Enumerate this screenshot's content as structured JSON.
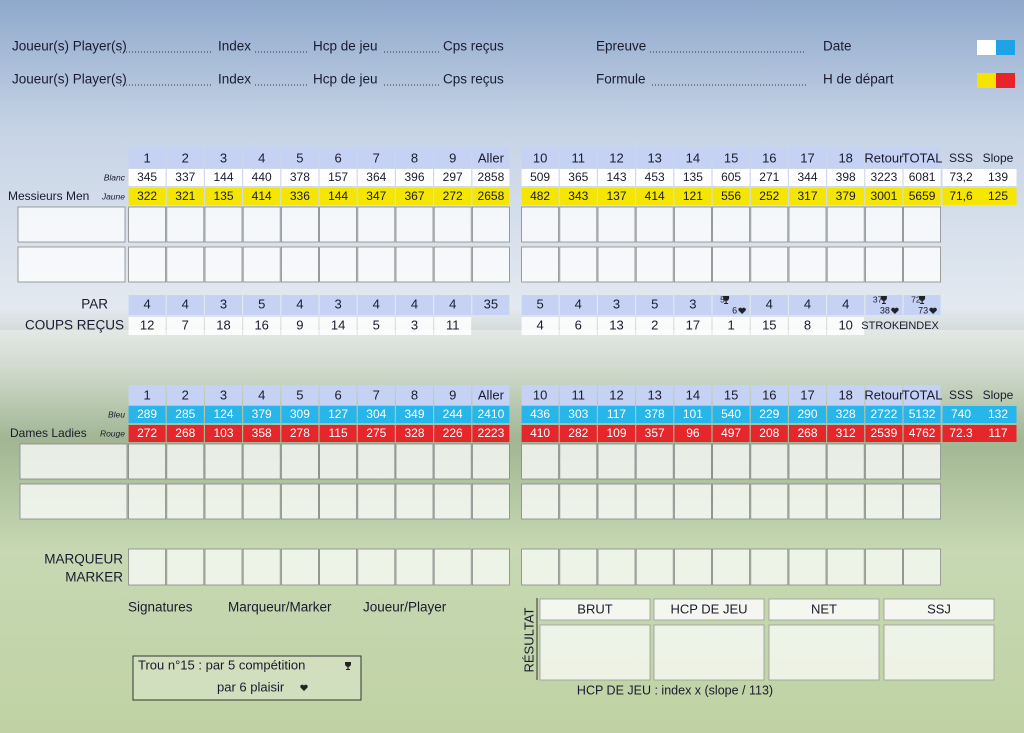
{
  "header": {
    "rows": [
      {
        "player": "Joueur(s) Player(s)",
        "index": "Index",
        "hcp": "Hcp de jeu",
        "strokes": "Cps reçus",
        "field1": "Epreuve",
        "field2": "Date"
      },
      {
        "player": "Joueur(s) Player(s)",
        "index": "Index",
        "hcp": "Hcp de jeu",
        "strokes": "Cps reçus",
        "field1": "Formule",
        "field2": "H de départ"
      }
    ]
  },
  "men": {
    "label": "Messieurs Men",
    "columns": [
      "1",
      "2",
      "3",
      "4",
      "5",
      "6",
      "7",
      "8",
      "9",
      "Aller",
      "10",
      "11",
      "12",
      "13",
      "14",
      "15",
      "16",
      "17",
      "18",
      "Retour",
      "TOTAL",
      "SSS",
      "Slope"
    ],
    "tees": [
      {
        "name": "Blanc",
        "values": [
          345,
          337,
          144,
          440,
          378,
          157,
          364,
          396,
          297,
          2858,
          509,
          365,
          143,
          453,
          135,
          605,
          271,
          344,
          398,
          3223,
          6081,
          "73,2",
          139
        ]
      },
      {
        "name": "Jaune",
        "values": [
          322,
          321,
          135,
          414,
          336,
          144,
          347,
          367,
          272,
          2658,
          482,
          343,
          137,
          414,
          121,
          556,
          252,
          317,
          379,
          3001,
          5659,
          "71,6",
          125
        ]
      }
    ]
  },
  "par": {
    "label": "PAR",
    "values": [
      4,
      4,
      3,
      5,
      4,
      3,
      4,
      4,
      4,
      35,
      5,
      4,
      3,
      5,
      3,
      {
        "competition": 5,
        "plaisir": 6
      },
      4,
      4,
      4,
      {
        "competition": 37,
        "plaisir": 38
      },
      {
        "competition": 72,
        "plaisir": 73
      }
    ]
  },
  "strokes_received": {
    "label": "COUPS REÇUS",
    "front": [
      12,
      7,
      18,
      16,
      9,
      14,
      5,
      3,
      11
    ],
    "back": [
      4,
      6,
      13,
      2,
      17,
      1,
      15,
      8,
      10
    ],
    "stroke": "STROKE",
    "index": "INDEX"
  },
  "ladies": {
    "label": "Dames Ladies",
    "columns": [
      "1",
      "2",
      "3",
      "4",
      "5",
      "6",
      "7",
      "8",
      "9",
      "Aller",
      "10",
      "11",
      "12",
      "13",
      "14",
      "15",
      "16",
      "17",
      "18",
      "Retour",
      "TOTAL",
      "SSS",
      "Slope"
    ],
    "tees": [
      {
        "name": "Bleu",
        "values": [
          289,
          285,
          124,
          379,
          309,
          127,
          304,
          349,
          244,
          2410,
          436,
          303,
          117,
          378,
          101,
          540,
          229,
          290,
          328,
          2722,
          5132,
          "740",
          132
        ]
      },
      {
        "name": "Rouge",
        "values": [
          272,
          268,
          103,
          358,
          278,
          115,
          275,
          328,
          226,
          2223,
          410,
          282,
          109,
          357,
          96,
          497,
          208,
          268,
          312,
          2539,
          4762,
          "72.3",
          117
        ]
      }
    ]
  },
  "marker": {
    "line1": "MARQUEUR",
    "line2": "MARKER"
  },
  "signatures": {
    "title": "Signatures",
    "marker": "Marqueur/Marker",
    "player": "Joueur/Player"
  },
  "result": {
    "label": "RÉSULTAT",
    "columns": [
      "BRUT",
      "HCP DE JEU",
      "NET",
      "SSJ"
    ],
    "formula": "HCP DE JEU : index x (slope / 113)"
  },
  "note": {
    "line1": "Trou n°15 :  par 5 compétition",
    "line2": "par 6 plaisir"
  }
}
